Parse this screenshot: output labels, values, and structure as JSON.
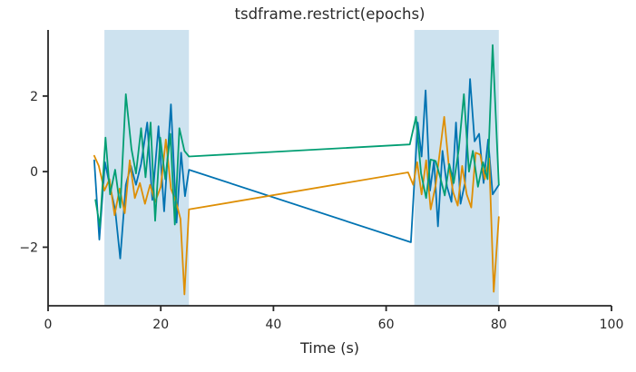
{
  "chart_data": {
    "type": "line",
    "title": "tsdframe.restrict(epochs)",
    "xlabel": "Time (s)",
    "ylabel": "",
    "xlim": [
      0,
      100
    ],
    "ylim": [
      -3.55,
      3.75
    ],
    "xticks": [
      0,
      20,
      40,
      60,
      80,
      100
    ],
    "xticklabels": [
      "0",
      "20",
      "40",
      "60",
      "80",
      "100"
    ],
    "yticks": [
      -2,
      0,
      2
    ],
    "yticklabels": [
      "−2",
      "0",
      "2"
    ],
    "grid": false,
    "legend": null,
    "background_color": "#ffffff",
    "axis_color": "#262626",
    "epoch_band_color": "#cde2ef",
    "epochs": [
      {
        "start": 10,
        "end": 25
      },
      {
        "start": 65,
        "end": 80
      }
    ],
    "series": [
      {
        "name": "column-0-blue",
        "color": "#0173b2",
        "points": [
          [
            8.2,
            0.3
          ],
          [
            9.1,
            -1.8
          ],
          [
            10.1,
            0.25
          ],
          [
            11.0,
            -0.4
          ],
          [
            11.9,
            -1.0
          ],
          [
            12.8,
            -2.3
          ],
          [
            13.8,
            -0.35
          ],
          [
            14.7,
            0.15
          ],
          [
            15.6,
            -0.35
          ],
          [
            16.5,
            0.2
          ],
          [
            17.6,
            1.3
          ],
          [
            18.5,
            -0.75
          ],
          [
            19.6,
            1.2
          ],
          [
            20.6,
            -1.05
          ],
          [
            21.8,
            1.78
          ],
          [
            22.8,
            -1.35
          ],
          [
            23.6,
            0.5
          ],
          [
            24.3,
            -0.65
          ],
          [
            25.0,
            0.05
          ],
          [
            64.4,
            -1.87
          ],
          [
            65.6,
            1.3
          ],
          [
            66.3,
            0.4
          ],
          [
            67.0,
            2.15
          ],
          [
            67.8,
            -0.5
          ],
          [
            68.5,
            0.3
          ],
          [
            69.2,
            -1.45
          ],
          [
            70.0,
            0.55
          ],
          [
            70.8,
            -0.4
          ],
          [
            71.6,
            -0.8
          ],
          [
            72.4,
            1.3
          ],
          [
            73.2,
            -0.85
          ],
          [
            74.0,
            -0.3
          ],
          [
            74.9,
            2.45
          ],
          [
            75.7,
            0.8
          ],
          [
            76.5,
            1.0
          ],
          [
            77.3,
            -0.3
          ],
          [
            78.1,
            0.85
          ],
          [
            78.9,
            -0.6
          ],
          [
            80.0,
            -0.35
          ]
        ]
      },
      {
        "name": "column-1-orange",
        "color": "#de8f05",
        "points": [
          [
            8.2,
            0.42
          ],
          [
            9.0,
            0.15
          ],
          [
            10.0,
            -0.5
          ],
          [
            10.9,
            -0.2
          ],
          [
            11.8,
            -1.15
          ],
          [
            12.7,
            -0.45
          ],
          [
            13.6,
            -1.1
          ],
          [
            14.5,
            0.3
          ],
          [
            15.4,
            -0.7
          ],
          [
            16.3,
            -0.3
          ],
          [
            17.2,
            -0.85
          ],
          [
            18.1,
            -0.35
          ],
          [
            19.0,
            -0.8
          ],
          [
            20.0,
            -0.4
          ],
          [
            20.9,
            0.85
          ],
          [
            21.8,
            -0.45
          ],
          [
            22.7,
            -0.8
          ],
          [
            23.5,
            -1.25
          ],
          [
            24.2,
            -3.25
          ],
          [
            25.0,
            -1.0
          ],
          [
            63.9,
            -0.02
          ],
          [
            64.8,
            -0.35
          ],
          [
            65.5,
            0.25
          ],
          [
            66.3,
            -0.6
          ],
          [
            67.1,
            0.3
          ],
          [
            67.9,
            -1.0
          ],
          [
            68.8,
            -0.35
          ],
          [
            69.6,
            0.6
          ],
          [
            70.3,
            1.45
          ],
          [
            71.1,
            0.2
          ],
          [
            71.9,
            -0.55
          ],
          [
            72.7,
            -0.9
          ],
          [
            73.5,
            0.15
          ],
          [
            74.3,
            -0.6
          ],
          [
            75.1,
            -0.95
          ],
          [
            75.9,
            0.5
          ],
          [
            76.7,
            0.45
          ],
          [
            77.5,
            -0.2
          ],
          [
            78.3,
            0.35
          ],
          [
            79.1,
            -3.18
          ],
          [
            80.0,
            -1.2
          ]
        ]
      },
      {
        "name": "column-2-green",
        "color": "#029e73",
        "points": [
          [
            8.4,
            -0.75
          ],
          [
            9.2,
            -1.45
          ],
          [
            10.2,
            0.9
          ],
          [
            11.0,
            -0.6
          ],
          [
            11.9,
            0.05
          ],
          [
            12.8,
            -0.95
          ],
          [
            13.8,
            2.05
          ],
          [
            14.8,
            0.6
          ],
          [
            15.6,
            -0.05
          ],
          [
            16.5,
            1.15
          ],
          [
            17.3,
            -0.15
          ],
          [
            18.2,
            1.3
          ],
          [
            19.0,
            -1.3
          ],
          [
            19.9,
            0.9
          ],
          [
            20.8,
            -0.2
          ],
          [
            21.7,
            1.0
          ],
          [
            22.5,
            -1.4
          ],
          [
            23.3,
            1.15
          ],
          [
            24.2,
            0.55
          ],
          [
            25.0,
            0.4
          ],
          [
            64.2,
            0.72
          ],
          [
            65.3,
            1.45
          ],
          [
            66.2,
            -0.05
          ],
          [
            67.1,
            -0.7
          ],
          [
            67.9,
            0.32
          ],
          [
            68.8,
            0.28
          ],
          [
            69.6,
            -0.15
          ],
          [
            70.4,
            -0.63
          ],
          [
            71.2,
            0.2
          ],
          [
            72.0,
            -0.3
          ],
          [
            72.9,
            0.6
          ],
          [
            73.8,
            2.05
          ],
          [
            74.7,
            0.0
          ],
          [
            75.4,
            0.55
          ],
          [
            76.3,
            -0.4
          ],
          [
            77.2,
            0.25
          ],
          [
            78.0,
            -0.2
          ],
          [
            78.9,
            3.35
          ],
          [
            80.0,
            -0.35
          ]
        ]
      }
    ]
  }
}
